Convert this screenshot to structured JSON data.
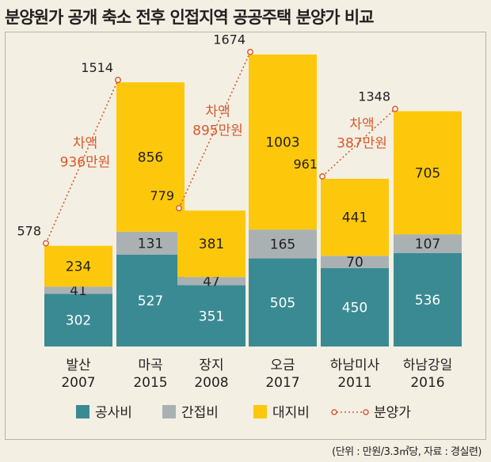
{
  "title": "분양원가 공개 축소 전후 인접지역 공공주택 분양가 비교",
  "unit_note": "(단위 : 만원/3.3㎡당, 자료 : 경실련)",
  "chart_data": {
    "type": "bar",
    "stacked": true,
    "categories": [
      {
        "name": "발산",
        "year": "2007"
      },
      {
        "name": "마곡",
        "year": "2015"
      },
      {
        "name": "장지",
        "year": "2008"
      },
      {
        "name": "오금",
        "year": "2017"
      },
      {
        "name": "하남미사",
        "year": "2011"
      },
      {
        "name": "하남강일",
        "year": "2016"
      }
    ],
    "series": [
      {
        "name": "공사비",
        "color": "#3a8a93",
        "values": [
          302,
          527,
          351,
          505,
          450,
          536
        ]
      },
      {
        "name": "간접비",
        "color": "#a9b1b3",
        "values": [
          41,
          131,
          47,
          165,
          70,
          107
        ]
      },
      {
        "name": "대지비",
        "color": "#fdc80b",
        "values": [
          234,
          856,
          381,
          1003,
          441,
          705
        ]
      }
    ],
    "line": {
      "name": "분양가",
      "color": "#d9582b",
      "values": [
        578,
        1514,
        779,
        1674,
        961,
        1348
      ]
    },
    "differences": [
      {
        "from": 0,
        "to": 1,
        "label1": "차액",
        "label2": "936만원"
      },
      {
        "from": 2,
        "to": 3,
        "label1": "차액",
        "label2": "895만원"
      },
      {
        "from": 4,
        "to": 5,
        "label1": "차액",
        "label2": "387만원"
      }
    ],
    "ylim": [
      0,
      1700
    ],
    "legend_position": "bottom",
    "grid": false
  }
}
